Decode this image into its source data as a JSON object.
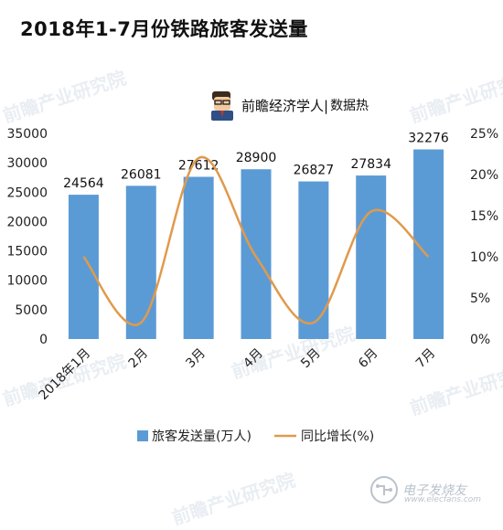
{
  "title": "2018年1-7月份铁路旅客发送量",
  "brand": {
    "avatar_icon": "reader-avatar-icon",
    "name": "前瞻经济学人|",
    "suffix": "数据热"
  },
  "watermarks": [
    "前瞻产业研究院",
    "前瞻产业研究院",
    "前瞻产业研究院",
    "前瞻产业研究院",
    "前瞻产业研究院",
    "前瞻产业研究院"
  ],
  "footer_mark": {
    "icon": "circuit-logo-icon",
    "text": "电子发烧友",
    "url": "www.elecfans.com"
  },
  "chart_data": {
    "type": "bar",
    "categories": [
      "2018年1月",
      "2月",
      "3月",
      "4月",
      "5月",
      "6月",
      "7月"
    ],
    "series": [
      {
        "name": "旅客发送量(万人)",
        "type": "bar",
        "axis": "left",
        "color": "#5b9bd5",
        "values": [
          24564,
          26081,
          27612,
          28900,
          26827,
          27834,
          32276
        ]
      },
      {
        "name": "同比增长(%)",
        "type": "line",
        "axis": "right",
        "color": "#e09a4c",
        "values": [
          10,
          2,
          22,
          10,
          2,
          15.5,
          10
        ]
      }
    ],
    "data_labels": [
      "24564",
      "26081",
      "27612",
      "28900",
      "26827",
      "27834",
      "32276"
    ],
    "y_left": {
      "min": 0,
      "max": 35000,
      "step": 5000,
      "ticks": [
        "0",
        "5000",
        "10000",
        "15000",
        "20000",
        "25000",
        "30000",
        "35000"
      ]
    },
    "y_right": {
      "min": 0,
      "max": 25,
      "step": 5,
      "ticks": [
        "0%",
        "5%",
        "10%",
        "15%",
        "20%",
        "25%"
      ]
    },
    "grid": false,
    "legend_position": "bottom"
  }
}
